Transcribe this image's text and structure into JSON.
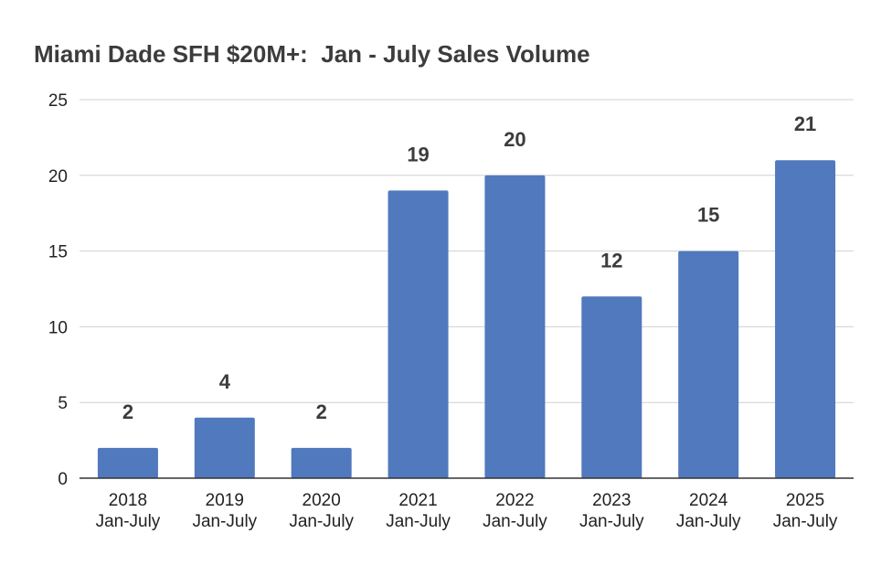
{
  "chart_data": {
    "type": "bar",
    "title": "Miami Dade SFH $20M+:  Jan - July Sales Volume",
    "categories": [
      [
        "2018",
        "Jan-July"
      ],
      [
        "2019",
        "Jan-July"
      ],
      [
        "2020",
        "Jan-July"
      ],
      [
        "2021",
        "Jan-July"
      ],
      [
        "2022",
        "Jan-July"
      ],
      [
        "2023",
        "Jan-July"
      ],
      [
        "2024",
        "Jan-July"
      ],
      [
        "2025",
        "Jan-July"
      ]
    ],
    "values": [
      2,
      4,
      2,
      19,
      20,
      12,
      15,
      21
    ],
    "ylim": [
      0,
      25
    ],
    "yticks": [
      0,
      5,
      10,
      15,
      20,
      25
    ],
    "grid": true,
    "data_labels": true,
    "bar_color": "#5079be",
    "grid_color": "#d0d0d0",
    "axis_color": "#333333",
    "label_color": "#3c3c3c"
  }
}
